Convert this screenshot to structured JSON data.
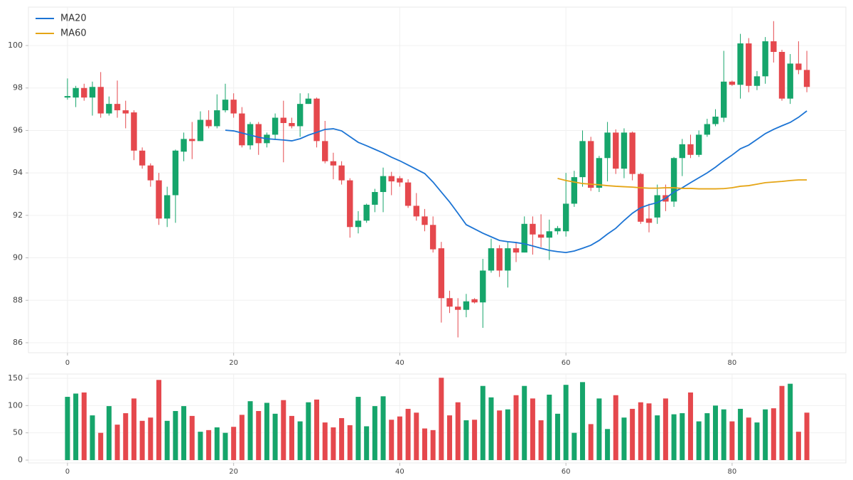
{
  "chart_data": [
    {
      "type": "candlestick",
      "x": [
        0,
        1,
        2,
        3,
        4,
        5,
        6,
        7,
        8,
        9,
        10,
        11,
        12,
        13,
        14,
        15,
        16,
        17,
        18,
        19,
        20,
        21,
        22,
        23,
        24,
        25,
        26,
        27,
        28,
        29,
        30,
        31,
        32,
        33,
        34,
        35,
        36,
        37,
        38,
        39,
        40,
        41,
        42,
        43,
        44,
        45,
        46,
        47,
        48,
        49,
        50,
        51,
        52,
        53,
        54,
        55,
        56,
        57,
        58,
        59,
        60,
        61,
        62,
        63,
        64,
        65,
        66,
        67,
        68,
        69,
        70,
        71,
        72,
        73,
        74,
        75,
        76,
        77,
        78,
        79,
        80,
        81,
        82,
        83,
        84,
        85,
        86,
        87,
        88,
        89
      ],
      "open": [
        97.55,
        97.55,
        98.0,
        97.55,
        98.05,
        96.8,
        97.25,
        96.95,
        96.85,
        95.05,
        94.35,
        93.65,
        91.85,
        92.95,
        95.0,
        95.6,
        95.5,
        96.5,
        96.2,
        96.95,
        97.45,
        96.8,
        95.3,
        96.3,
        95.4,
        95.8,
        96.6,
        96.35,
        96.2,
        97.25,
        97.5,
        95.5,
        94.55,
        94.35,
        93.65,
        91.45,
        91.75,
        92.5,
        93.1,
        93.85,
        93.75,
        93.55,
        92.45,
        91.95,
        91.55,
        90.45,
        88.1,
        87.7,
        87.55,
        88.05,
        87.9,
        89.4,
        90.45,
        89.4,
        90.45,
        90.25,
        91.6,
        91.1,
        90.95,
        91.25,
        91.25,
        92.55,
        93.8,
        95.5,
        93.3,
        94.7,
        95.9,
        94.2,
        95.9,
        93.95,
        91.85,
        91.9,
        92.95,
        92.65,
        94.7,
        95.35,
        94.85,
        95.8,
        96.3,
        96.6,
        98.3,
        98.15,
        100.1,
        98.1,
        98.55,
        100.2,
        99.7,
        97.5,
        99.15,
        98.85
      ],
      "high": [
        98.45,
        98.1,
        98.2,
        98.3,
        98.75,
        97.6,
        98.35,
        97.4,
        96.95,
        95.2,
        94.45,
        94.0,
        93.35,
        95.1,
        95.9,
        96.4,
        96.9,
        96.95,
        97.7,
        98.2,
        97.75,
        97.1,
        96.4,
        96.4,
        95.9,
        96.8,
        97.4,
        96.6,
        97.75,
        97.75,
        97.55,
        96.45,
        94.95,
        94.55,
        93.75,
        92.2,
        92.55,
        93.25,
        94.25,
        94.05,
        93.85,
        93.7,
        93.05,
        92.3,
        91.95,
        90.75,
        88.45,
        88.1,
        88.3,
        88.1,
        89.95,
        90.9,
        90.6,
        90.75,
        90.75,
        91.95,
        91.95,
        92.05,
        91.8,
        91.5,
        94.0,
        94.1,
        96.0,
        95.7,
        94.8,
        96.4,
        96.05,
        96.1,
        95.95,
        94.0,
        92.55,
        93.45,
        93.45,
        94.75,
        95.6,
        95.8,
        96.0,
        96.55,
        97.0,
        99.75,
        98.35,
        100.55,
        100.35,
        98.8,
        100.4,
        101.15,
        99.8,
        99.6,
        100.2,
        99.75
      ],
      "low": [
        97.45,
        97.1,
        97.4,
        96.7,
        96.6,
        96.7,
        96.6,
        96.1,
        94.6,
        94.2,
        93.35,
        91.55,
        91.45,
        91.65,
        94.55,
        94.65,
        95.5,
        96.1,
        96.1,
        96.85,
        96.6,
        95.2,
        95.1,
        94.85,
        95.2,
        95.55,
        94.5,
        96.1,
        95.7,
        97.25,
        95.2,
        94.45,
        93.7,
        93.45,
        90.95,
        91.15,
        91.65,
        92.15,
        92.15,
        92.95,
        93.35,
        92.35,
        91.75,
        91.25,
        90.25,
        86.95,
        87.4,
        86.25,
        87.2,
        87.85,
        86.7,
        89.3,
        89.1,
        88.6,
        89.8,
        90.25,
        90.15,
        90.5,
        89.9,
        91.1,
        91.0,
        92.4,
        93.35,
        93.15,
        93.1,
        93.6,
        93.95,
        93.75,
        93.65,
        91.6,
        91.2,
        91.6,
        92.2,
        92.4,
        93.85,
        94.7,
        94.75,
        95.7,
        96.2,
        96.4,
        98.1,
        97.5,
        97.8,
        97.9,
        98.2,
        99.2,
        97.4,
        97.25,
        98.65,
        97.8
      ],
      "close": [
        97.62,
        98.0,
        97.55,
        98.05,
        96.8,
        97.25,
        96.95,
        96.8,
        95.05,
        94.35,
        93.65,
        91.85,
        92.95,
        95.05,
        95.6,
        95.5,
        96.5,
        96.2,
        96.95,
        97.45,
        96.8,
        95.3,
        96.3,
        95.4,
        95.8,
        96.6,
        96.35,
        96.2,
        97.25,
        97.5,
        95.5,
        94.55,
        94.35,
        93.65,
        91.45,
        91.75,
        92.5,
        93.1,
        93.85,
        93.6,
        93.55,
        92.45,
        91.95,
        91.55,
        90.4,
        88.1,
        87.7,
        87.55,
        87.95,
        87.9,
        89.4,
        90.45,
        89.4,
        90.45,
        90.25,
        91.6,
        91.1,
        90.95,
        91.25,
        91.4,
        92.55,
        93.8,
        95.5,
        93.3,
        94.7,
        95.9,
        94.2,
        95.9,
        93.95,
        91.7,
        91.65,
        92.95,
        92.65,
        94.7,
        95.35,
        94.85,
        95.8,
        96.3,
        96.65,
        98.3,
        98.15,
        100.1,
        98.1,
        98.55,
        100.2,
        99.7,
        97.5,
        99.15,
        98.85,
        98.05
      ],
      "up_color": "#16a56b",
      "down_color": "#e5484d",
      "series": [
        {
          "name": "MA20",
          "color": "#1c74d4",
          "values": [
            null,
            null,
            null,
            null,
            null,
            null,
            null,
            null,
            null,
            null,
            null,
            null,
            null,
            null,
            null,
            null,
            null,
            null,
            null,
            96.01,
            95.98,
            95.88,
            95.78,
            95.68,
            95.61,
            95.58,
            95.55,
            95.51,
            95.61,
            95.78,
            95.91,
            96.05,
            96.08,
            95.98,
            95.71,
            95.44,
            95.28,
            95.11,
            94.94,
            94.74,
            94.57,
            94.37,
            94.17,
            93.97,
            93.57,
            93.1,
            92.63,
            92.1,
            91.56,
            91.36,
            91.16,
            90.99,
            90.82,
            90.76,
            90.72,
            90.66,
            90.56,
            90.45,
            90.35,
            90.29,
            90.25,
            90.32,
            90.45,
            90.59,
            90.82,
            91.12,
            91.39,
            91.76,
            92.1,
            92.36,
            92.5,
            92.6,
            92.8,
            93.1,
            93.3,
            93.54,
            93.77,
            94.0,
            94.27,
            94.57,
            94.84,
            95.14,
            95.31,
            95.58,
            95.85,
            96.05,
            96.22,
            96.38,
            96.62,
            96.92
          ]
        },
        {
          "name": "MA60",
          "color": "#e5a516",
          "values": [
            null,
            null,
            null,
            null,
            null,
            null,
            null,
            null,
            null,
            null,
            null,
            null,
            null,
            null,
            null,
            null,
            null,
            null,
            null,
            null,
            null,
            null,
            null,
            null,
            null,
            null,
            null,
            null,
            null,
            null,
            null,
            null,
            null,
            null,
            null,
            null,
            null,
            null,
            null,
            null,
            null,
            null,
            null,
            null,
            null,
            null,
            null,
            null,
            null,
            null,
            null,
            null,
            null,
            null,
            null,
            null,
            null,
            null,
            null,
            93.74,
            93.64,
            93.57,
            93.5,
            93.47,
            93.44,
            93.4,
            93.37,
            93.35,
            93.33,
            93.3,
            93.28,
            93.28,
            93.3,
            93.3,
            93.27,
            93.27,
            93.25,
            93.25,
            93.25,
            93.26,
            93.3,
            93.37,
            93.4,
            93.47,
            93.54,
            93.57,
            93.6,
            93.64,
            93.67,
            93.67
          ]
        }
      ],
      "xlim": [
        -4.7,
        93.7
      ],
      "xticks": [
        0,
        20,
        40,
        60,
        80
      ],
      "ylim": [
        85.53,
        101.81
      ],
      "yticks": [
        86,
        88,
        90,
        92,
        94,
        96,
        98,
        100
      ],
      "grid": true,
      "legend": "upper left"
    },
    {
      "type": "bar",
      "values": [
        116,
        122,
        124,
        82,
        50,
        99,
        65,
        86,
        113,
        72,
        78,
        147,
        72,
        90,
        99,
        81,
        52,
        55,
        60,
        50,
        61,
        83,
        108,
        90,
        105,
        85,
        110,
        81,
        71,
        106,
        111,
        69,
        60,
        77,
        64,
        116,
        62,
        99,
        117,
        74,
        80,
        94,
        87,
        58,
        55,
        151,
        82,
        106,
        73,
        74,
        136,
        115,
        91,
        93,
        119,
        136,
        113,
        73,
        120,
        85,
        138,
        50,
        143,
        66,
        113,
        57,
        119,
        78,
        94,
        106,
        104,
        82,
        113,
        84,
        86,
        124,
        71,
        86,
        100,
        93,
        71,
        94,
        78,
        69,
        93,
        95,
        136,
        140,
        52,
        87
      ],
      "up_color": "#16a56b",
      "down_color": "#e5484d",
      "xlim": [
        -4.7,
        93.7
      ],
      "xticks": [
        0,
        20,
        40,
        60,
        80
      ],
      "ylim": [
        -5.2,
        157.8
      ],
      "yticks": [
        0,
        50,
        100,
        150
      ],
      "grid": true
    }
  ]
}
